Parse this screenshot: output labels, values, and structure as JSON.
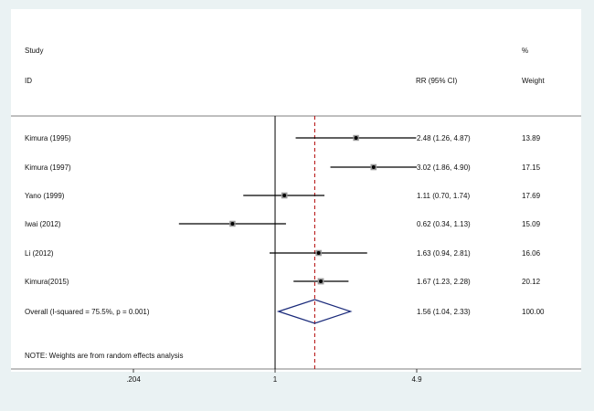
{
  "colors": {
    "background": "#eaf2f3",
    "panel": "#ffffff",
    "ci_line": "#000000",
    "point": "#000000",
    "point_box": "#9a9a9a",
    "null_line": "#000000",
    "overall_line": "#b00000",
    "diamond": "#1a2a7a"
  },
  "header": {
    "study_label": "Study",
    "id_label": "ID",
    "effect_label": "RR (95% CI)",
    "pct_label": "%",
    "weight_label": "Weight"
  },
  "footnote": "NOTE: Weights are from random effects analysis",
  "chart_data": {
    "type": "forest",
    "scale": "log",
    "xlim": [
      0.204,
      4.9
    ],
    "x_ticks": [
      {
        "value": 0.204,
        "label": ".204"
      },
      {
        "value": 1,
        "label": "1"
      },
      {
        "value": 4.9,
        "label": "4.9"
      }
    ],
    "null_value": 1,
    "studies": [
      {
        "id": "Kimura (1995)",
        "rr": 2.48,
        "lower": 1.26,
        "upper": 4.87,
        "ci_text": "2.48 (1.26, 4.87)",
        "weight": 13.89,
        "weight_text": "13.89"
      },
      {
        "id": "Kimura (1997)",
        "rr": 3.02,
        "lower": 1.86,
        "upper": 4.9,
        "ci_text": "3.02 (1.86, 4.90)",
        "weight": 17.15,
        "weight_text": "17.15"
      },
      {
        "id": "Yano (1999)",
        "rr": 1.11,
        "lower": 0.7,
        "upper": 1.74,
        "ci_text": "1.11 (0.70, 1.74)",
        "weight": 17.69,
        "weight_text": "17.69"
      },
      {
        "id": "Iwai (2012)",
        "rr": 0.62,
        "lower": 0.34,
        "upper": 1.13,
        "ci_text": "0.62 (0.34, 1.13)",
        "weight": 15.09,
        "weight_text": "15.09"
      },
      {
        "id": "Li (2012)",
        "rr": 1.63,
        "lower": 0.94,
        "upper": 2.81,
        "ci_text": "1.63 (0.94, 2.81)",
        "weight": 16.06,
        "weight_text": "16.06"
      },
      {
        "id": "Kimura(2015)",
        "rr": 1.67,
        "lower": 1.23,
        "upper": 2.28,
        "ci_text": "1.67 (1.23, 2.28)",
        "weight": 20.12,
        "weight_text": "20.12"
      }
    ],
    "overall": {
      "label": "Overall  (I-squared = 75.5%, p = 0.001)",
      "rr": 1.56,
      "lower": 1.04,
      "upper": 2.33,
      "ci_text": "1.56 (1.04, 2.33)",
      "weight_text": "100.00"
    }
  }
}
